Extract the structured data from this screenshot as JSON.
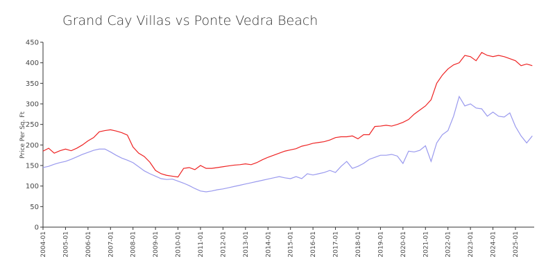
{
  "chart_data": {
    "type": "line",
    "title": "Grand Cay Villas vs Ponte Vedra Beach",
    "ylabel": "Price Per Sq. Ft",
    "x": [
      "2004-01",
      "2004-04",
      "2004-07",
      "2004-10",
      "2005-01",
      "2005-04",
      "2005-07",
      "2005-10",
      "2006-01",
      "2006-04",
      "2006-07",
      "2006-10",
      "2007-01",
      "2007-04",
      "2007-07",
      "2007-10",
      "2008-01",
      "2008-04",
      "2008-07",
      "2008-10",
      "2009-01",
      "2009-04",
      "2009-07",
      "2009-10",
      "2010-01",
      "2010-04",
      "2010-07",
      "2010-10",
      "2011-01",
      "2011-04",
      "2011-07",
      "2011-10",
      "2012-01",
      "2012-04",
      "2012-07",
      "2012-10",
      "2013-01",
      "2013-04",
      "2013-07",
      "2013-10",
      "2014-01",
      "2014-04",
      "2014-07",
      "2014-10",
      "2015-01",
      "2015-04",
      "2015-07",
      "2015-10",
      "2016-01",
      "2016-04",
      "2016-07",
      "2016-10",
      "2017-01",
      "2017-04",
      "2017-07",
      "2017-10",
      "2018-01",
      "2018-04",
      "2018-07",
      "2018-10",
      "2019-01",
      "2019-04",
      "2019-07",
      "2019-10",
      "2020-01",
      "2020-04",
      "2020-07",
      "2020-10",
      "2021-01",
      "2021-04",
      "2021-07",
      "2021-10",
      "2022-01",
      "2022-04",
      "2022-07",
      "2022-10",
      "2023-01",
      "2023-04",
      "2023-07",
      "2023-10",
      "2024-01",
      "2024-04",
      "2024-07",
      "2024-10",
      "2025-01",
      "2025-04",
      "2025-07",
      "2025-10"
    ],
    "series": [
      {
        "color": "#ee2222",
        "values": [
          185,
          192,
          180,
          186,
          190,
          186,
          192,
          200,
          210,
          218,
          232,
          235,
          237,
          234,
          230,
          224,
          195,
          180,
          172,
          158,
          138,
          130,
          126,
          124,
          122,
          143,
          145,
          140,
          150,
          143,
          143,
          145,
          147,
          149,
          151,
          152,
          154,
          152,
          157,
          164,
          170,
          175,
          180,
          185,
          188,
          191,
          197,
          200,
          204,
          206,
          208,
          212,
          218,
          220,
          220,
          222,
          215,
          225,
          225,
          245,
          246,
          248,
          246,
          250,
          255,
          262,
          275,
          285,
          295,
          310,
          350,
          370,
          385,
          395,
          400,
          418,
          415,
          405,
          425,
          418,
          415,
          418,
          415,
          410,
          405,
          393,
          397,
          393
        ]
      },
      {
        "color": "#9999ee",
        "values": [
          145,
          148,
          153,
          157,
          160,
          165,
          171,
          177,
          182,
          187,
          190,
          190,
          183,
          175,
          168,
          163,
          157,
          147,
          137,
          130,
          124,
          118,
          116,
          117,
          112,
          107,
          101,
          94,
          88,
          86,
          88,
          91,
          93,
          96,
          99,
          102,
          105,
          108,
          111,
          114,
          117,
          120,
          123,
          120,
          118,
          123,
          118,
          130,
          127,
          130,
          133,
          138,
          133,
          148,
          160,
          143,
          148,
          155,
          165,
          170,
          175,
          175,
          177,
          173,
          155,
          185,
          183,
          187,
          198,
          160,
          205,
          225,
          235,
          270,
          318,
          295,
          300,
          290,
          288,
          270,
          280,
          270,
          268,
          278,
          245,
          222,
          205,
          222
        ]
      }
    ],
    "xlim": [
      "2004-01",
      "2025-11"
    ],
    "xticks": [
      "2004-01",
      "2005-01",
      "2006-01",
      "2007-01",
      "2008-01",
      "2009-01",
      "2010-01",
      "2011-01",
      "2012-01",
      "2013-01",
      "2014-01",
      "2015-01",
      "2016-01",
      "2017-01",
      "2018-01",
      "2019-01",
      "2020-01",
      "2021-01",
      "2022-01",
      "2023-01",
      "2024-01",
      "2025-01"
    ],
    "ylim": [
      0,
      450
    ],
    "yticks": [
      0,
      50,
      100,
      150,
      200,
      250,
      300,
      350,
      400,
      450
    ]
  }
}
